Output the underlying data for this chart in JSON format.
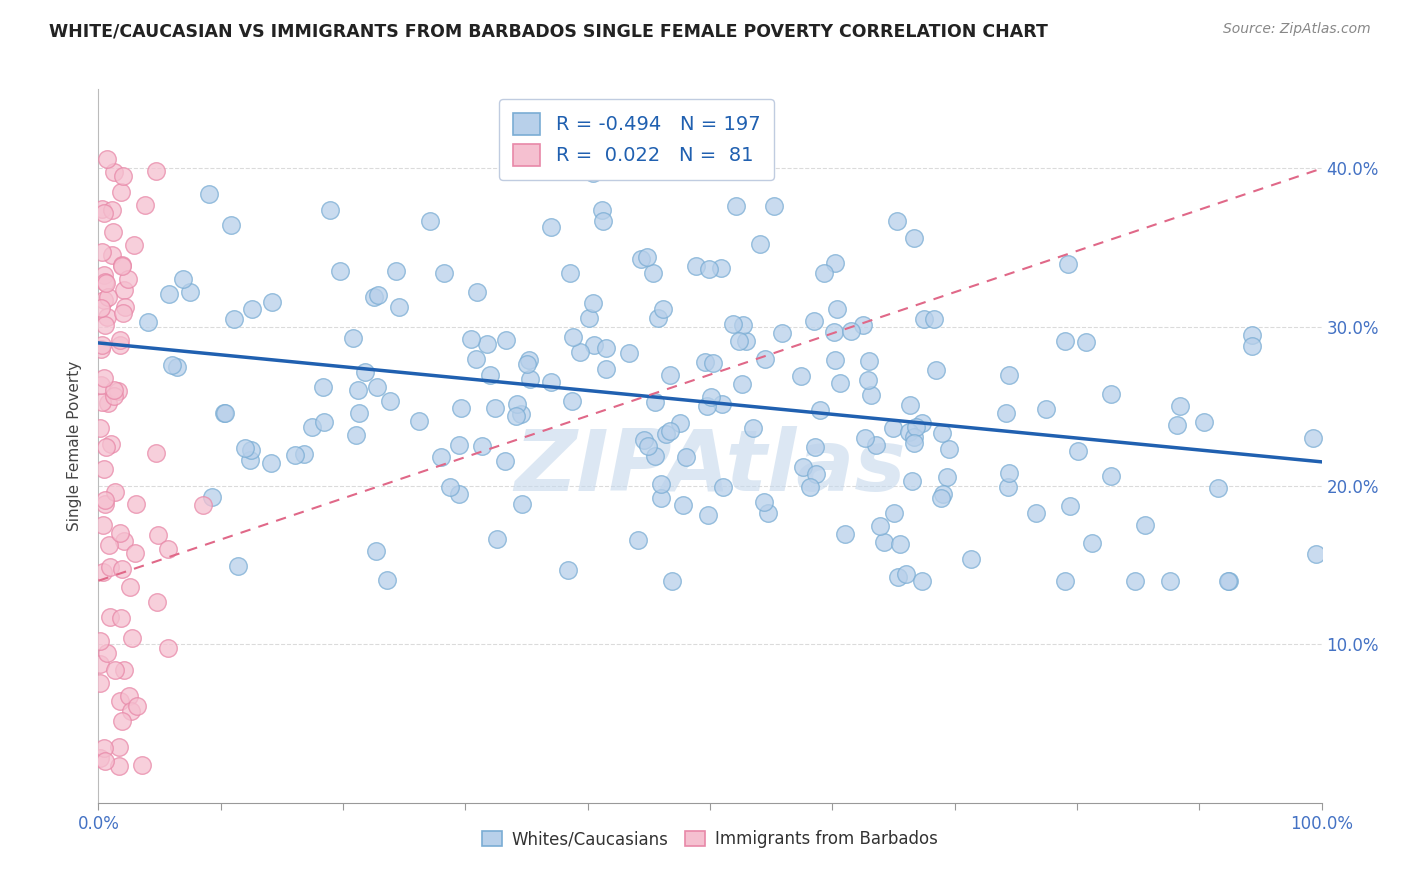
{
  "title": "WHITE/CAUCASIAN VS IMMIGRANTS FROM BARBADOS SINGLE FEMALE POVERTY CORRELATION CHART",
  "source": "Source: ZipAtlas.com",
  "ylabel": "Single Female Poverty",
  "blue_R": -0.494,
  "blue_N": 197,
  "pink_R": 0.022,
  "pink_N": 81,
  "blue_color": "#b8d0ea",
  "blue_edge": "#7aadd4",
  "pink_color": "#f5c0d0",
  "pink_edge": "#e888a8",
  "blue_line_color": "#2060b0",
  "pink_line_color": "#e06888",
  "r_value_color": "#e05000",
  "n_value_color": "#2060b0",
  "legend_text_color": "#2060b0",
  "x_min": 0.0,
  "x_max": 1.0,
  "y_min": 0.0,
  "y_max": 0.45,
  "blue_intercept": 0.29,
  "blue_slope": -0.075,
  "pink_intercept": 0.14,
  "pink_slope": 0.26,
  "watermark_color": "#c5d8ec",
  "watermark_alpha": 0.6,
  "grid_color": "#d8d8d8",
  "y_ticks": [
    0.1,
    0.2,
    0.3,
    0.4
  ],
  "y_tick_labels": [
    "10.0%",
    "20.0%",
    "30.0%",
    "40.0%"
  ],
  "x_tick_labels_show": [
    "0.0%",
    "100.0%"
  ],
  "legend_box_color": "#e8f0f8",
  "legend_box_edge": "#b0c8e0"
}
